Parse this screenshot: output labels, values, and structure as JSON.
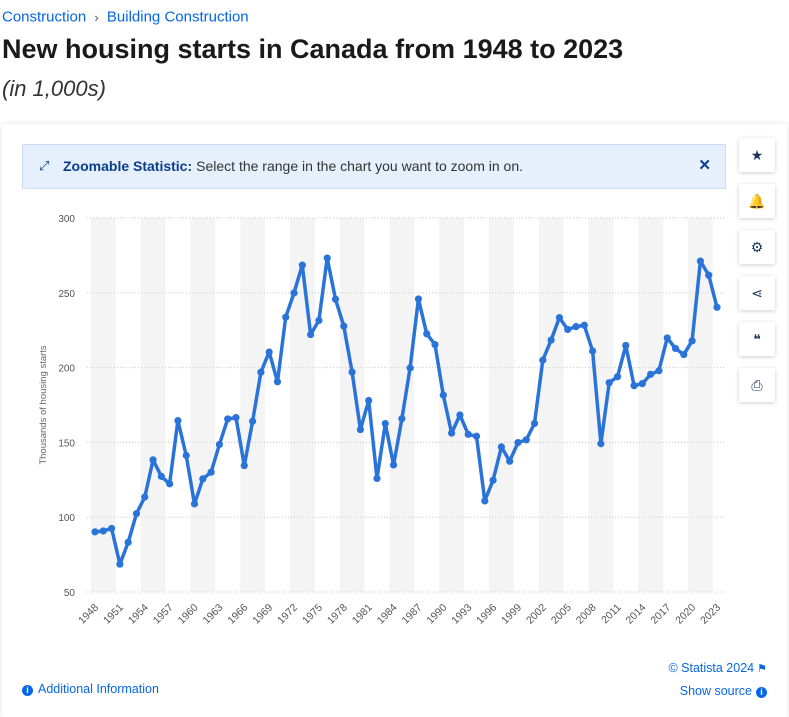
{
  "breadcrumb": {
    "items": [
      "Construction",
      "Building Construction"
    ],
    "separator": "›"
  },
  "page": {
    "title": "New housing starts in Canada from 1948 to 2023",
    "subtitle": "(in 1,000s)"
  },
  "zoom_banner": {
    "title": "Zoomable Statistic:",
    "text": "Select the range in the chart you want to zoom in on.",
    "close_glyph": "✕",
    "icon_glyph": "⤢"
  },
  "toolbar": {
    "buttons": [
      {
        "name": "star-icon",
        "glyph": "★"
      },
      {
        "name": "bell-icon",
        "glyph": "🔔"
      },
      {
        "name": "gear-icon",
        "glyph": "⚙"
      },
      {
        "name": "share-icon",
        "glyph": "⋖"
      },
      {
        "name": "quote-icon",
        "glyph": "❝"
      },
      {
        "name": "print-icon",
        "glyph": "⎙"
      }
    ]
  },
  "footer": {
    "additional_info": "Additional Information",
    "copyright": "© Statista 2024",
    "show_source": "Show source"
  },
  "colors": {
    "accent": "#0666e5",
    "line": "#2a73d9",
    "band": "#f4f4f4"
  },
  "chart_data": {
    "type": "line",
    "title": "",
    "xlabel": "",
    "ylabel": "Thousands of housing starts",
    "ylim": [
      50,
      300
    ],
    "yticks": [
      50,
      100,
      150,
      200,
      250,
      300
    ],
    "xtick_labels": [
      "1948",
      "1951",
      "1954",
      "1957",
      "1960",
      "1963",
      "1966",
      "1969",
      "1972",
      "1975",
      "1978",
      "1981",
      "1984",
      "1987",
      "1990",
      "1993",
      "1996",
      "1999",
      "2002",
      "2005",
      "2008",
      "2011",
      "2014",
      "2017",
      "2020",
      "2023"
    ],
    "grid": true,
    "x": [
      1948,
      1949,
      1950,
      1951,
      1952,
      1953,
      1954,
      1955,
      1956,
      1957,
      1958,
      1959,
      1960,
      1961,
      1962,
      1963,
      1964,
      1965,
      1966,
      1967,
      1968,
      1969,
      1970,
      1971,
      1972,
      1973,
      1974,
      1975,
      1976,
      1977,
      1978,
      1979,
      1980,
      1981,
      1982,
      1983,
      1984,
      1985,
      1986,
      1987,
      1988,
      1989,
      1990,
      1991,
      1992,
      1993,
      1994,
      1995,
      1996,
      1997,
      1998,
      1999,
      2000,
      2001,
      2002,
      2003,
      2004,
      2005,
      2006,
      2007,
      2008,
      2009,
      2010,
      2011,
      2012,
      2013,
      2014,
      2015,
      2016,
      2017,
      2018,
      2019,
      2020,
      2021,
      2022,
      2023
    ],
    "series": [
      {
        "values": [
          90.2,
          90.8,
          92.5,
          68.6,
          83.2,
          102.4,
          113.5,
          138.3,
          127.3,
          122.3,
          164.6,
          141.3,
          108.9,
          125.6,
          130.1,
          148.6,
          165.7,
          166.6,
          134.5,
          164.1,
          196.9,
          210.4,
          190.5,
          233.7,
          249.9,
          268.5,
          222.1,
          231.5,
          273.2,
          245.7,
          227.7,
          197.0,
          158.6,
          178.0,
          125.9,
          162.6,
          134.9,
          165.8,
          199.8,
          245.9,
          222.6,
          215.4,
          181.6,
          156.2,
          168.3,
          155.4,
          154.1,
          110.9,
          124.7,
          147.0,
          137.4,
          149.9,
          151.7,
          162.7,
          205.0,
          218.4,
          233.4,
          225.5,
          227.4,
          228.3,
          211.1,
          149.1,
          189.9,
          193.9,
          214.8,
          187.9,
          189.3,
          195.5,
          197.9,
          219.8,
          212.8,
          208.7,
          217.9,
          271.2,
          261.8,
          240.3
        ]
      }
    ]
  }
}
